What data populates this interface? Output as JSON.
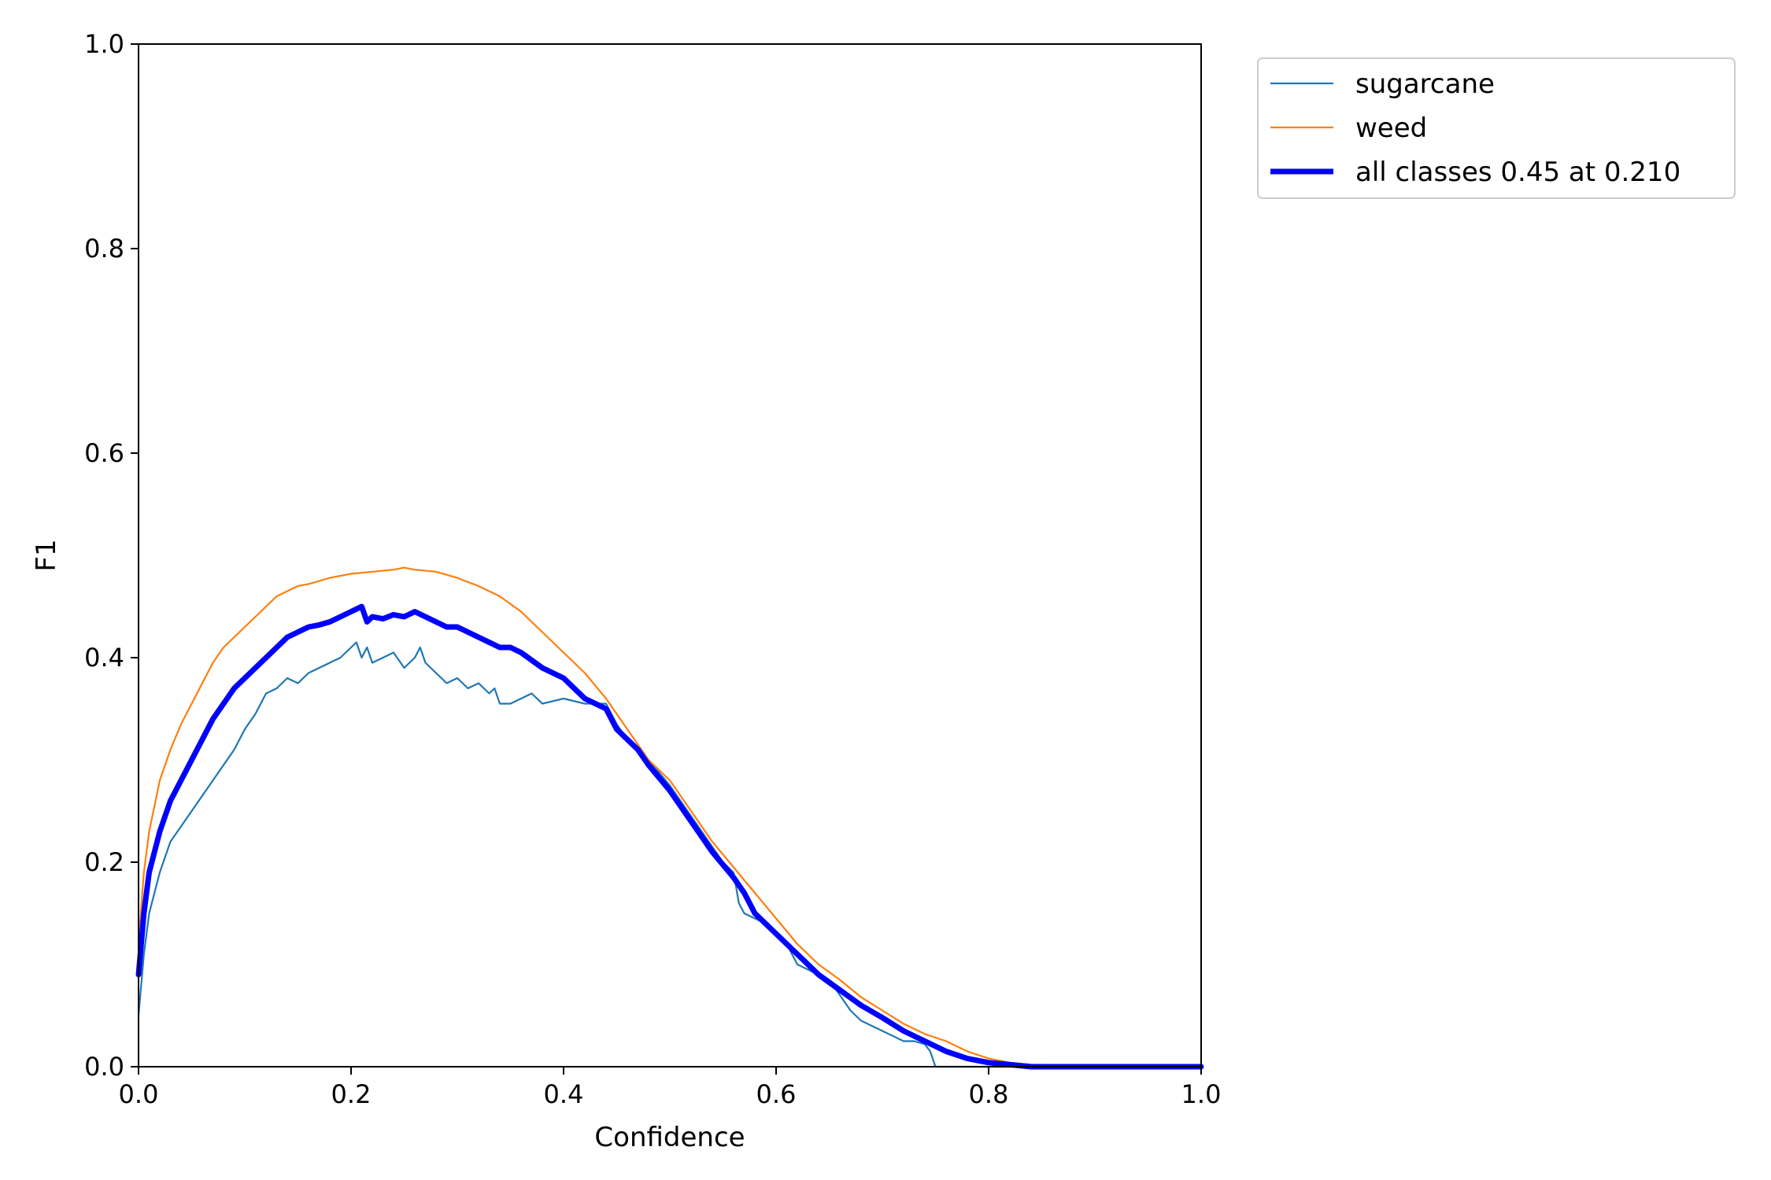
{
  "chart_data": {
    "type": "line",
    "title": "",
    "xlabel": "Confidence",
    "ylabel": "F1",
    "xlim": [
      0.0,
      1.0
    ],
    "ylim": [
      0.0,
      1.0
    ],
    "xticks": [
      "0.0",
      "0.2",
      "0.4",
      "0.6",
      "0.8",
      "1.0"
    ],
    "yticks": [
      "0.0",
      "0.2",
      "0.4",
      "0.6",
      "0.8",
      "1.0"
    ],
    "grid": false,
    "legend_position": "outside top-right",
    "series": [
      {
        "name": "sugarcane",
        "color": "#1f77b4",
        "x": [
          0.0,
          0.005,
          0.01,
          0.02,
          0.03,
          0.04,
          0.05,
          0.06,
          0.07,
          0.08,
          0.09,
          0.1,
          0.11,
          0.12,
          0.13,
          0.14,
          0.15,
          0.16,
          0.17,
          0.18,
          0.19,
          0.2,
          0.205,
          0.21,
          0.215,
          0.22,
          0.23,
          0.24,
          0.25,
          0.26,
          0.265,
          0.27,
          0.28,
          0.29,
          0.3,
          0.31,
          0.32,
          0.33,
          0.335,
          0.34,
          0.35,
          0.36,
          0.37,
          0.38,
          0.4,
          0.42,
          0.44,
          0.45,
          0.46,
          0.47,
          0.48,
          0.5,
          0.52,
          0.54,
          0.55,
          0.56,
          0.565,
          0.57,
          0.58,
          0.59,
          0.6,
          0.61,
          0.62,
          0.63,
          0.64,
          0.65,
          0.66,
          0.67,
          0.68,
          0.7,
          0.72,
          0.73,
          0.74,
          0.745,
          0.75,
          0.8,
          0.85,
          0.9,
          1.0
        ],
        "y": [
          0.05,
          0.11,
          0.15,
          0.19,
          0.22,
          0.235,
          0.25,
          0.265,
          0.28,
          0.295,
          0.31,
          0.33,
          0.345,
          0.365,
          0.37,
          0.38,
          0.375,
          0.385,
          0.39,
          0.395,
          0.4,
          0.41,
          0.415,
          0.4,
          0.41,
          0.395,
          0.4,
          0.405,
          0.39,
          0.4,
          0.41,
          0.395,
          0.385,
          0.375,
          0.38,
          0.37,
          0.375,
          0.365,
          0.37,
          0.355,
          0.355,
          0.36,
          0.365,
          0.355,
          0.36,
          0.355,
          0.355,
          0.335,
          0.32,
          0.31,
          0.3,
          0.275,
          0.245,
          0.215,
          0.2,
          0.19,
          0.16,
          0.15,
          0.145,
          0.14,
          0.13,
          0.12,
          0.1,
          0.095,
          0.09,
          0.085,
          0.07,
          0.055,
          0.045,
          0.035,
          0.025,
          0.025,
          0.022,
          0.015,
          0.0,
          0.0,
          0.0,
          0.0,
          0.0
        ]
      },
      {
        "name": "weed",
        "color": "#ff7f0e",
        "x": [
          0.0,
          0.005,
          0.01,
          0.02,
          0.03,
          0.04,
          0.05,
          0.06,
          0.07,
          0.08,
          0.09,
          0.1,
          0.11,
          0.12,
          0.13,
          0.14,
          0.15,
          0.16,
          0.17,
          0.18,
          0.19,
          0.2,
          0.22,
          0.24,
          0.25,
          0.26,
          0.28,
          0.3,
          0.32,
          0.34,
          0.36,
          0.38,
          0.4,
          0.42,
          0.44,
          0.46,
          0.48,
          0.5,
          0.52,
          0.54,
          0.56,
          0.58,
          0.6,
          0.62,
          0.64,
          0.66,
          0.68,
          0.7,
          0.72,
          0.74,
          0.76,
          0.78,
          0.8,
          0.82,
          0.84,
          1.0
        ],
        "y": [
          0.12,
          0.19,
          0.23,
          0.28,
          0.31,
          0.335,
          0.355,
          0.375,
          0.395,
          0.41,
          0.42,
          0.43,
          0.44,
          0.45,
          0.46,
          0.465,
          0.47,
          0.472,
          0.475,
          0.478,
          0.48,
          0.482,
          0.484,
          0.486,
          0.488,
          0.486,
          0.484,
          0.478,
          0.47,
          0.46,
          0.445,
          0.425,
          0.405,
          0.385,
          0.36,
          0.33,
          0.3,
          0.28,
          0.25,
          0.22,
          0.195,
          0.17,
          0.145,
          0.12,
          0.1,
          0.085,
          0.068,
          0.055,
          0.042,
          0.032,
          0.025,
          0.015,
          0.008,
          0.004,
          0.002,
          0.0
        ]
      },
      {
        "name": "all classes 0.45 at 0.210",
        "color": "#0000ff",
        "x": [
          0.0,
          0.005,
          0.01,
          0.02,
          0.03,
          0.04,
          0.05,
          0.06,
          0.07,
          0.08,
          0.09,
          0.1,
          0.11,
          0.12,
          0.13,
          0.14,
          0.15,
          0.16,
          0.17,
          0.18,
          0.19,
          0.2,
          0.21,
          0.215,
          0.22,
          0.23,
          0.24,
          0.25,
          0.26,
          0.27,
          0.28,
          0.29,
          0.3,
          0.31,
          0.32,
          0.33,
          0.34,
          0.35,
          0.36,
          0.38,
          0.4,
          0.42,
          0.44,
          0.45,
          0.46,
          0.47,
          0.48,
          0.5,
          0.52,
          0.54,
          0.56,
          0.57,
          0.58,
          0.6,
          0.62,
          0.64,
          0.66,
          0.68,
          0.7,
          0.72,
          0.74,
          0.76,
          0.78,
          0.8,
          0.82,
          0.84,
          1.0
        ],
        "y": [
          0.09,
          0.15,
          0.19,
          0.23,
          0.26,
          0.28,
          0.3,
          0.32,
          0.34,
          0.355,
          0.37,
          0.38,
          0.39,
          0.4,
          0.41,
          0.42,
          0.425,
          0.43,
          0.432,
          0.435,
          0.44,
          0.445,
          0.45,
          0.435,
          0.44,
          0.438,
          0.442,
          0.44,
          0.445,
          0.44,
          0.435,
          0.43,
          0.43,
          0.425,
          0.42,
          0.415,
          0.41,
          0.41,
          0.405,
          0.39,
          0.38,
          0.36,
          0.35,
          0.33,
          0.32,
          0.31,
          0.295,
          0.27,
          0.24,
          0.21,
          0.185,
          0.17,
          0.15,
          0.13,
          0.11,
          0.09,
          0.075,
          0.06,
          0.048,
          0.035,
          0.025,
          0.015,
          0.008,
          0.004,
          0.002,
          0.0,
          0.0
        ]
      }
    ]
  }
}
